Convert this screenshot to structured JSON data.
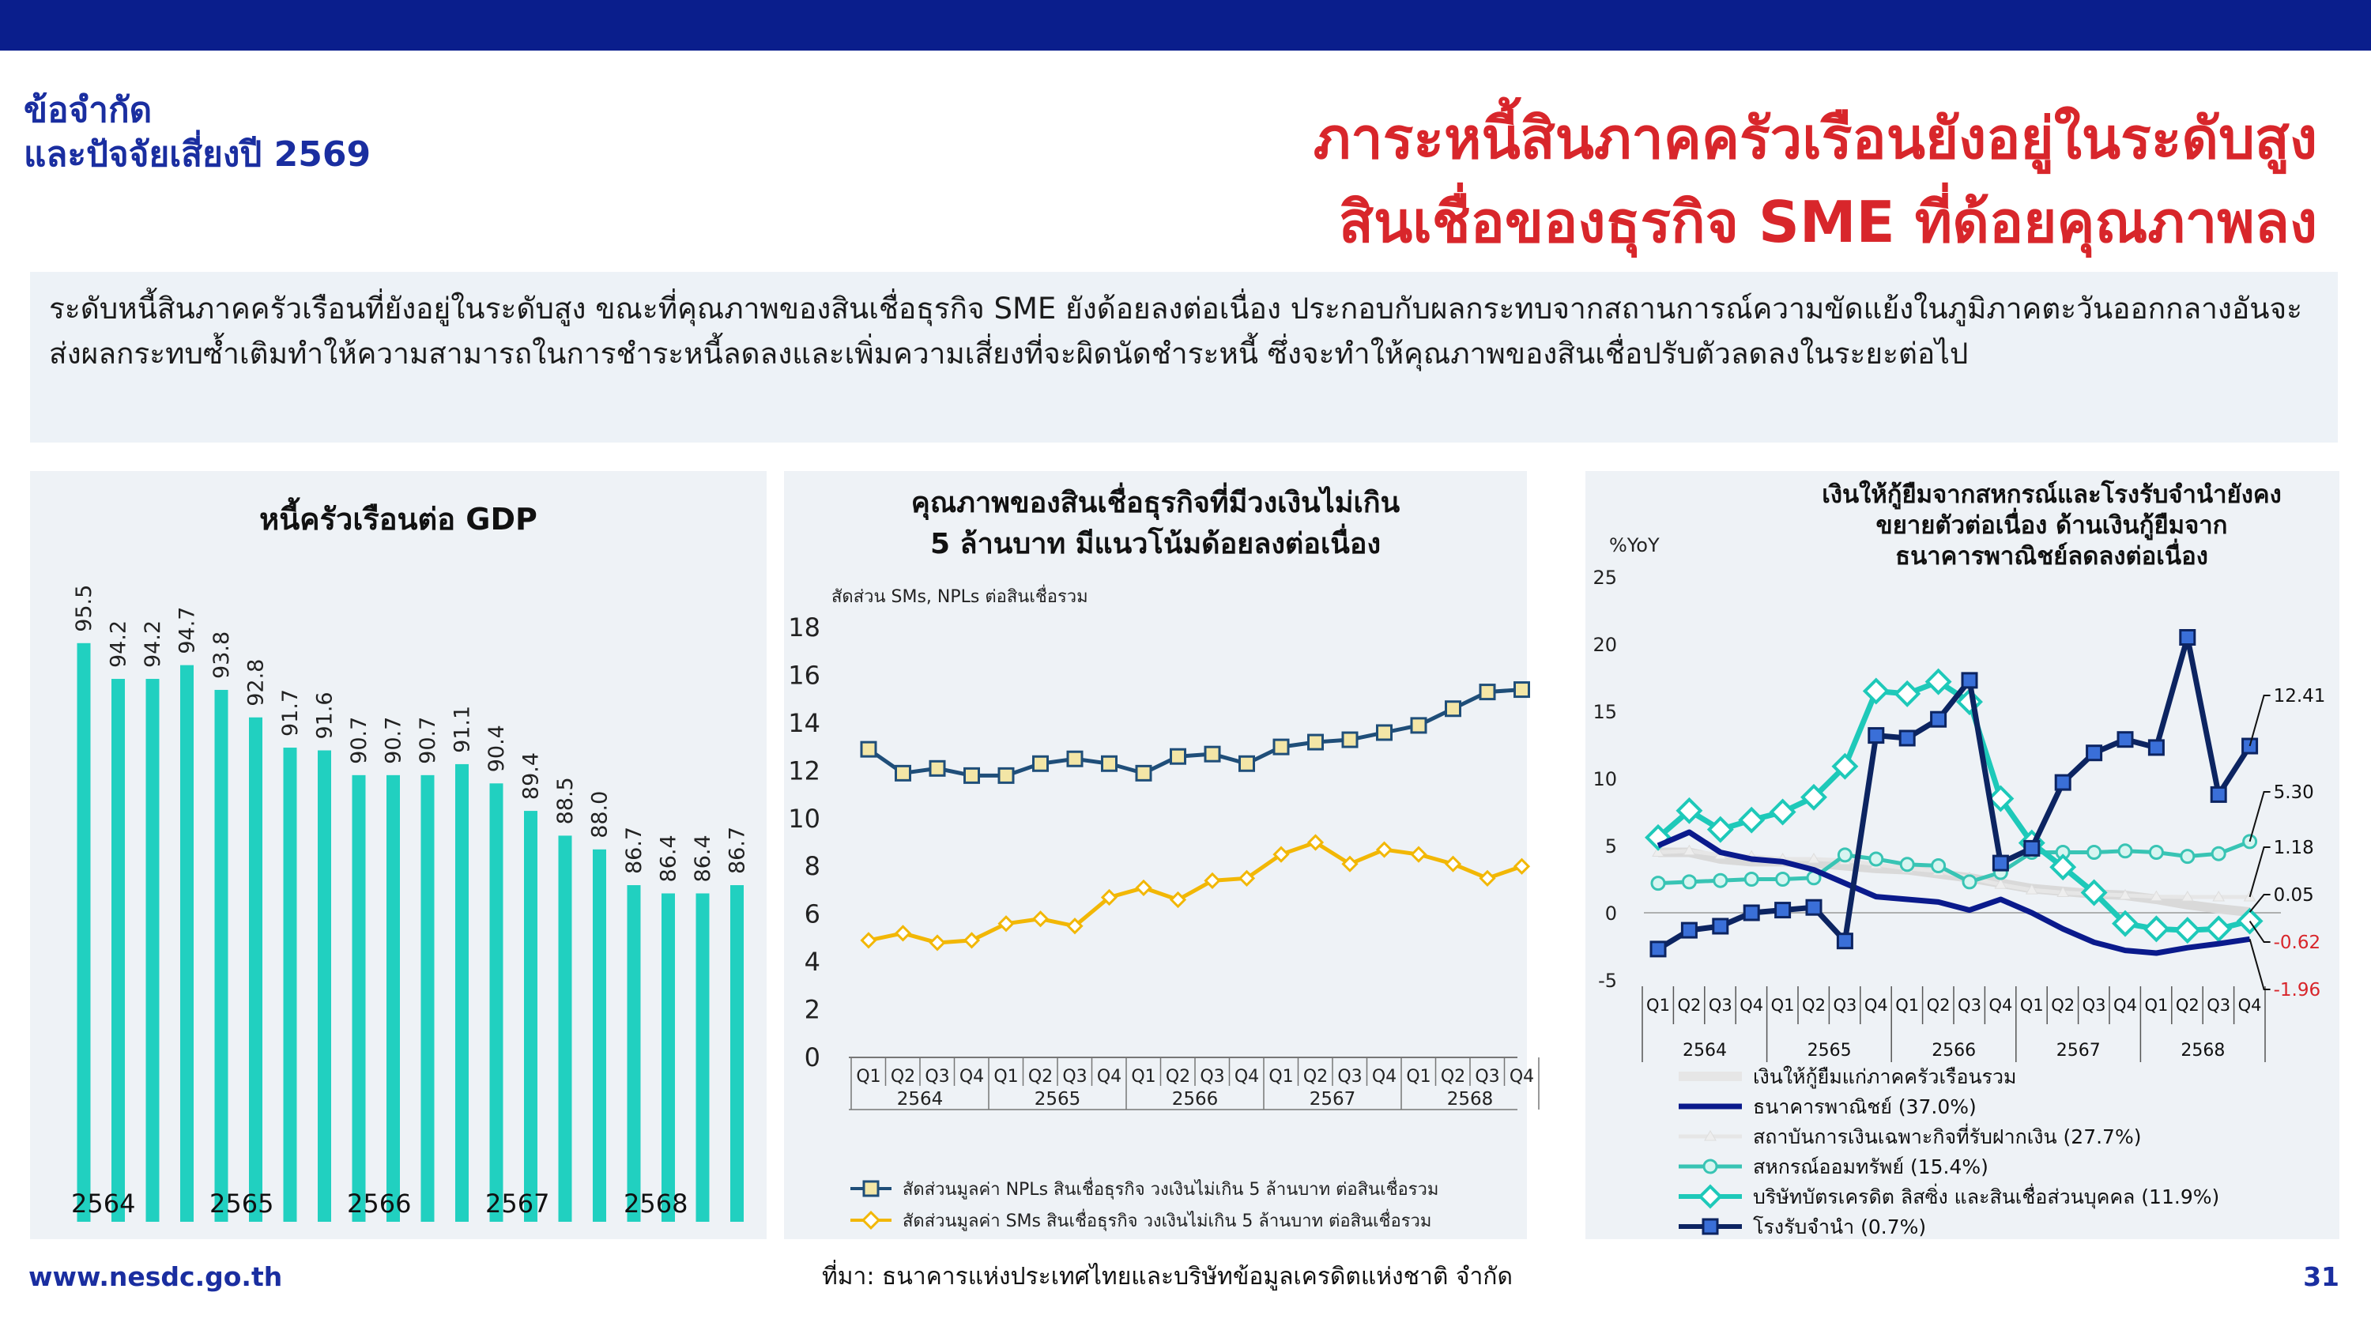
{
  "header": {
    "section_title_line1": "ข้อจำกัด",
    "section_title_line2": "และปัจจัยเสี่ยงปี 2569",
    "headline_line1": "ภาระหนี้สินภาคครัวเรือนยังอยู่ในระดับสูง",
    "headline_line2": "สินเชื่อของธุรกิจ SME ที่ด้อยคุณภาพลง"
  },
  "summary": {
    "text": "ระดับหนี้สินภาคครัวเรือนที่ยังอยู่ในระดับสูง ขณะที่คุณภาพของสินเชื่อธุรกิจ SME ยังด้อยลงต่อเนื่อง ประกอบกับผลกระทบจากสถานการณ์ความขัดแย้งในภูมิภาคตะวันออกกลางอันจะส่งผลกระทบซ้ำเติมทำให้ความสามารถในการชำระหนี้ลดลงและเพิ่มความเสี่ยงที่จะผิดนัดชำระหนี้ ซึ่งจะทำให้คุณภาพของสินเชื่อปรับตัวลดลงในระยะต่อไป"
  },
  "footer": {
    "url": "www.nesdc.go.th",
    "source": "ที่มา: ธนาคารแห่งประเทศไทยและบริษัทข้อมูลเครดิตแห่งชาติ จำกัด",
    "page_number": "31"
  },
  "colors": {
    "bar": "#21d0c0",
    "npl": "#1f4e79",
    "sm": "#f2b705",
    "commercial_bank": "#0a1a8c",
    "sfi": "#d9d9d9",
    "cooperatives": "#38c4b4",
    "credit_card": "#1ec9b9",
    "pawnshop": "#0c2461"
  },
  "chart_data": [
    {
      "type": "bar",
      "title": "หนี้ครัวเรือนต่อ GDP",
      "year_labels": [
        "2564",
        "2565",
        "2566",
        "2567",
        "2568"
      ],
      "values": [
        95.5,
        94.2,
        94.2,
        94.7,
        93.8,
        92.8,
        91.7,
        91.6,
        90.7,
        90.7,
        90.7,
        91.1,
        90.4,
        89.4,
        88.5,
        88.0,
        86.7,
        86.4,
        86.4,
        86.7
      ],
      "value_labels": [
        "95.5",
        "94.2",
        "94.2",
        "94.7",
        "93.8",
        "92.8",
        "91.7",
        "91.6",
        "90.7",
        "90.7",
        "90.7",
        "91.1",
        "90.4",
        "89.4",
        "88.5",
        "88.0",
        "86.7",
        "86.4",
        "86.4",
        "86.7"
      ]
    },
    {
      "type": "line",
      "title_line1": "คุณภาพของสินเชื่อธุรกิจที่มีวงเงินไม่เกิน",
      "title_line2": "5 ล้านบาท มีแนวโน้มด้อยลงต่อเนื่อง",
      "ylabel": "สัดส่วน SMs, NPLs ต่อสินเชื่อรวม",
      "ylim": [
        0,
        18
      ],
      "yticks": [
        "0",
        "2",
        "4",
        "6",
        "8",
        "10",
        "12",
        "14",
        "16",
        "18"
      ],
      "quarters": [
        "Q1",
        "Q2",
        "Q3",
        "Q4",
        "Q1",
        "Q2",
        "Q3",
        "Q4",
        "Q1",
        "Q2",
        "Q3",
        "Q4",
        "Q1",
        "Q2",
        "Q3",
        "Q4",
        "Q1",
        "Q2",
        "Q3",
        "Q4"
      ],
      "years": [
        "2564",
        "2565",
        "2566",
        "2567",
        "2568"
      ],
      "series": [
        {
          "name": "สัดส่วนมูลค่า NPLs สินเชื่อธุรกิจ วงเงินไม่เกิน 5 ล้านบาท ต่อสินเชื่อรวม",
          "values": [
            12.9,
            11.9,
            12.1,
            11.8,
            11.8,
            12.3,
            12.5,
            12.3,
            11.9,
            12.6,
            12.7,
            12.3,
            13.0,
            13.2,
            13.3,
            13.6,
            13.9,
            14.6,
            15.3,
            15.4
          ]
        },
        {
          "name": "สัดส่วนมูลค่า SMs สินเชื่อธุรกิจ วงเงินไม่เกิน 5 ล้านบาท ต่อสินเชื่อรวม",
          "values": [
            4.9,
            5.2,
            4.8,
            4.9,
            5.6,
            5.8,
            5.5,
            6.7,
            7.1,
            6.6,
            7.4,
            7.5,
            8.5,
            9.0,
            8.1,
            8.7,
            8.5,
            8.1,
            7.5,
            8.0
          ]
        }
      ]
    },
    {
      "type": "line",
      "title_line1": "เงินให้กู้ยืมจากสหกรณ์และโรงรับจำนำยังคง",
      "title_line2": "ขยายตัวต่อเนื่อง ด้านเงินกู้ยืมจาก",
      "title_line3": "ธนาคารพาณิชย์ลดลงต่อเนื่อง",
      "ylabel": "%YoY",
      "ylim": [
        -5,
        25
      ],
      "yticks": [
        "-5",
        "0",
        "5",
        "10",
        "15",
        "20",
        "25"
      ],
      "quarters": [
        "Q1",
        "Q2",
        "Q3",
        "Q4",
        "Q1",
        "Q2",
        "Q3",
        "Q4",
        "Q1",
        "Q2",
        "Q3",
        "Q4",
        "Q1",
        "Q2",
        "Q3",
        "Q4",
        "Q1",
        "Q2",
        "Q3",
        "Q4"
      ],
      "years": [
        "2564",
        "2565",
        "2566",
        "2567",
        "2568"
      ],
      "end_labels": [
        "12.41",
        "5.30",
        "1.18",
        "0.05",
        "-0.62",
        "-1.96"
      ],
      "series": [
        {
          "name": "เงินให้กู้ยืมแก่ภาคครัวเรือนรวม",
          "values": [
            4.5,
            4.5,
            4.0,
            3.8,
            3.8,
            3.7,
            3.5,
            3.3,
            3.2,
            2.9,
            2.6,
            2.2,
            1.8,
            1.6,
            1.4,
            1.3,
            1.0,
            0.6,
            0.3,
            0.05
          ]
        },
        {
          "name": "ธนาคารพาณิชย์ (37.0%)",
          "values": [
            5.0,
            6.0,
            4.5,
            4.0,
            3.8,
            3.2,
            2.2,
            1.2,
            1.0,
            0.8,
            0.2,
            1.0,
            0.0,
            -1.2,
            -2.2,
            -2.8,
            -3.0,
            -2.6,
            -2.3,
            -1.96
          ]
        },
        {
          "name": "สถาบันการเงินเฉพาะกิจที่รับฝากเงิน (27.7%)",
          "values": [
            4.5,
            4.6,
            4.3,
            4.2,
            4.0,
            4.0,
            3.9,
            3.6,
            3.3,
            3.1,
            2.6,
            2.1,
            1.7,
            1.5,
            1.4,
            1.3,
            1.2,
            1.18,
            1.18,
            1.18
          ]
        },
        {
          "name": "สหกรณ์ออมทรัพย์ (15.4%)",
          "values": [
            2.2,
            2.3,
            2.4,
            2.5,
            2.5,
            2.6,
            4.3,
            4.0,
            3.6,
            3.5,
            2.3,
            3.0,
            4.5,
            4.5,
            4.5,
            4.6,
            4.5,
            4.2,
            4.4,
            5.3
          ]
        },
        {
          "name": "บริษัทบัตรเครดิต ลิสซิ่ง และสินเชื่อส่วนบุคคล (11.9%)",
          "values": [
            5.6,
            7.6,
            6.2,
            6.9,
            7.5,
            8.6,
            10.9,
            16.5,
            16.3,
            17.2,
            15.7,
            8.5,
            5.2,
            3.4,
            1.5,
            -0.8,
            -1.2,
            -1.3,
            -1.2,
            -0.62
          ]
        },
        {
          "name": "โรงรับจำนำ (0.7%)",
          "values": [
            -2.7,
            -1.3,
            -1.0,
            0.0,
            0.2,
            0.4,
            -2.1,
            13.2,
            13.0,
            14.4,
            17.3,
            3.7,
            4.8,
            9.7,
            11.9,
            12.9,
            12.3,
            20.5,
            8.8,
            12.41
          ]
        }
      ]
    }
  ]
}
